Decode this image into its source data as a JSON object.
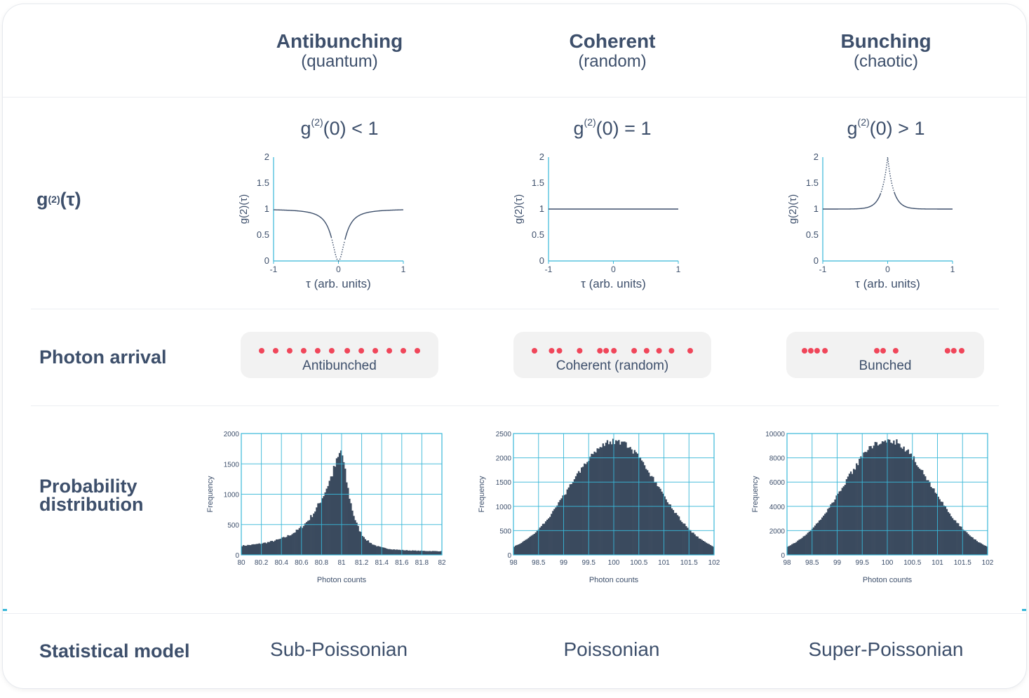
{
  "columns": [
    {
      "title": "Antibunching",
      "subtitle": "(quantum)",
      "equation": "(0) < 1",
      "arrival_label": "Antibunched",
      "model": "Sub-Poissonian"
    },
    {
      "title": "Coherent",
      "subtitle": "(random)",
      "equation": "(0) = 1",
      "arrival_label": "Coherent (random)",
      "model": "Poissonian"
    },
    {
      "title": "Bunching",
      "subtitle": "(chaotic)",
      "equation": "(0) > 1",
      "arrival_label": "Bunched",
      "model": "Super-Poissonian"
    }
  ],
  "equation_prefix": "g",
  "equation_sup": "(2)",
  "row_labels": {
    "g2": "(τ)",
    "g2_prefix": "g",
    "g2_sup": "(2)",
    "arrival": "Photon arrival",
    "prob_line1": "Probability",
    "prob_line2": "distribution",
    "model": "Statistical model"
  },
  "g2_plot": {
    "ylabel": "g(2)(τ)",
    "xlabel": "τ (arb. units)",
    "yticks": [
      "0",
      "0.5",
      "1",
      "1.5",
      "2"
    ],
    "xticks": [
      "-1",
      "0",
      "1"
    ]
  },
  "hist_common": {
    "xlabel": "Photon counts",
    "ylabel": "Frequency"
  },
  "chart_data": [
    {
      "type": "line",
      "title": "g(2)(0) < 1",
      "xlabel": "τ (arb. units)",
      "ylabel": "g(2)(τ)",
      "xlim": [
        -1,
        1
      ],
      "ylim": [
        0,
        2
      ],
      "shape": "dip",
      "baseline": 1,
      "center": 0,
      "center_value": 0
    },
    {
      "type": "line",
      "title": "g(2)(0) = 1",
      "xlabel": "τ (arb. units)",
      "ylabel": "g(2)(τ)",
      "xlim": [
        -1,
        1
      ],
      "ylim": [
        0,
        2
      ],
      "shape": "flat",
      "baseline": 1
    },
    {
      "type": "line",
      "title": "g(2)(0) > 1",
      "xlabel": "τ (arb. units)",
      "ylabel": "g(2)(τ)",
      "xlim": [
        -1,
        1
      ],
      "ylim": [
        0,
        2
      ],
      "shape": "peak",
      "baseline": 1,
      "center": 0,
      "center_value": 2
    },
    {
      "type": "bar",
      "xlabel": "Photon counts",
      "ylabel": "Frequency",
      "xlim": [
        80,
        82
      ],
      "ylim": [
        0,
        2000
      ],
      "xticks": [
        "80",
        "80.2",
        "80.4",
        "80.6",
        "80.8",
        "81",
        "81.2",
        "81.4",
        "81.6",
        "81.8",
        "82"
      ],
      "yticks": [
        "0",
        "500",
        "1000",
        "1500",
        "2000"
      ],
      "distribution": "peaked",
      "peak_x": 81.0,
      "peak_y": 1750,
      "floor_y": 90
    },
    {
      "type": "bar",
      "xlabel": "Photon counts",
      "ylabel": "Frequency",
      "xlim": [
        98,
        102
      ],
      "ylim": [
        0,
        2500
      ],
      "xticks": [
        "98",
        "98.5",
        "99",
        "99.5",
        "100",
        "100.5",
        "101",
        "101.5",
        "102"
      ],
      "yticks": [
        "0",
        "500",
        "1000",
        "1500",
        "2000",
        "2500"
      ],
      "distribution": "normal",
      "peak_x": 100.0,
      "peak_y": 2350
    },
    {
      "type": "bar",
      "xlabel": "Photon counts",
      "ylabel": "Frequency",
      "xlim": [
        98,
        102
      ],
      "ylim": [
        0,
        10000
      ],
      "xticks": [
        "98",
        "98.5",
        "99",
        "99.5",
        "100",
        "100.5",
        "101",
        "101.5",
        "102"
      ],
      "yticks": [
        "0",
        "2000",
        "4000",
        "6000",
        "8000",
        "10000"
      ],
      "distribution": "normal",
      "peak_x": 100.0,
      "peak_y": 9500
    }
  ],
  "colors": {
    "text": "#3d4f6b",
    "axis": "#38b7d8",
    "dot": "#f0465a",
    "bar": "#3a4a5e",
    "curve": "#3d4f6b"
  },
  "arrival_dots": [
    [
      0.0,
      0.09,
      0.18,
      0.27,
      0.36,
      0.45,
      0.55,
      0.64,
      0.73,
      0.82,
      0.91,
      1.0
    ],
    [
      0.0,
      0.11,
      0.16,
      0.29,
      0.42,
      0.46,
      0.51,
      0.64,
      0.72,
      0.8,
      0.88,
      1.0
    ],
    [
      0.0,
      0.04,
      0.08,
      0.13,
      0.46,
      0.5,
      0.58,
      0.91,
      0.95,
      1.0
    ]
  ]
}
